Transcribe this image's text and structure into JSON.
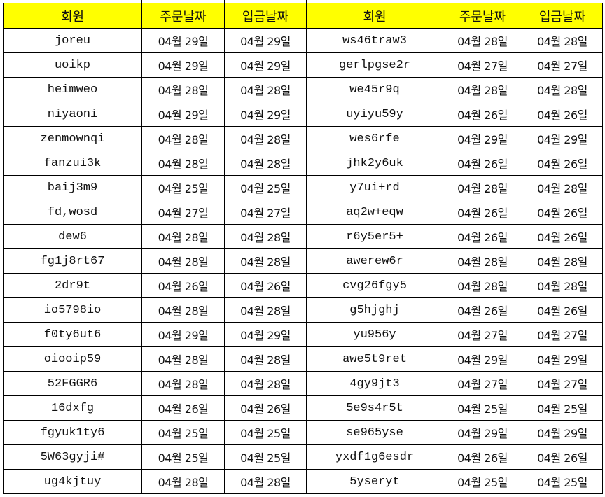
{
  "sheet": {
    "header_color": "#ffff00",
    "headers": [
      "회원",
      "주문날짜",
      "입금날짜",
      "회원",
      "주문날짜",
      "입금날짜"
    ],
    "rows": [
      [
        "joreu",
        "04월 29일",
        "04월 29일",
        "ws46traw3",
        "04월 28일",
        "04월 28일"
      ],
      [
        "uoikp",
        "04월 29일",
        "04월 29일",
        "gerlpgse2r",
        "04월 27일",
        "04월 27일"
      ],
      [
        "heimweo",
        "04월 28일",
        "04월 28일",
        "we45r9q",
        "04월 28일",
        "04월 28일"
      ],
      [
        "niyaoni",
        "04월 29일",
        "04월 29일",
        "uyiyu59y",
        "04월 26일",
        "04월 26일"
      ],
      [
        "zenmownqi",
        "04월 28일",
        "04월 28일",
        "wes6rfe",
        "04월 29일",
        "04월 29일"
      ],
      [
        "fanzui3k",
        "04월 28일",
        "04월 28일",
        "jhk2y6uk",
        "04월 26일",
        "04월 26일"
      ],
      [
        "baij3m9",
        "04월 25일",
        "04월 25일",
        "y7ui+rd",
        "04월 28일",
        "04월 28일"
      ],
      [
        "fd,wosd",
        "04월 27일",
        "04월 27일",
        "aq2w+eqw",
        "04월 26일",
        "04월 26일"
      ],
      [
        "dew6",
        "04월 28일",
        "04월 28일",
        "r6y5er5+",
        "04월 26일",
        "04월 26일"
      ],
      [
        "fg1j8rt67",
        "04월 28일",
        "04월 28일",
        "awerew6r",
        "04월 28일",
        "04월 28일"
      ],
      [
        "2dr9t",
        "04월 26일",
        "04월 26일",
        "cvg26fgy5",
        "04월 28일",
        "04월 28일"
      ],
      [
        "io5798io",
        "04월 28일",
        "04월 28일",
        "g5hjghj",
        "04월 26일",
        "04월 26일"
      ],
      [
        "f0ty6ut6",
        "04월 29일",
        "04월 29일",
        "yu956y",
        "04월 27일",
        "04월 27일"
      ],
      [
        "oiooip59",
        "04월 28일",
        "04월 28일",
        "awe5t9ret",
        "04월 29일",
        "04월 29일"
      ],
      [
        "52FGGR6",
        "04월 28일",
        "04월 28일",
        "4gy9jt3",
        "04월 27일",
        "04월 27일"
      ],
      [
        "16dxfg",
        "04월 26일",
        "04월 26일",
        "5e9s4r5t",
        "04월 25일",
        "04월 25일"
      ],
      [
        "fgyuk1ty6",
        "04월 25일",
        "04월 25일",
        "se965yse",
        "04월 29일",
        "04월 29일"
      ],
      [
        "5W63gyji#",
        "04월 25일",
        "04월 25일",
        "yxdf1g6esdr",
        "04월 26일",
        "04월 26일"
      ],
      [
        "ug4kjtuy",
        "04월 28일",
        "04월 28일",
        "5yseryt",
        "04월 25일",
        "04월 25일"
      ]
    ]
  }
}
